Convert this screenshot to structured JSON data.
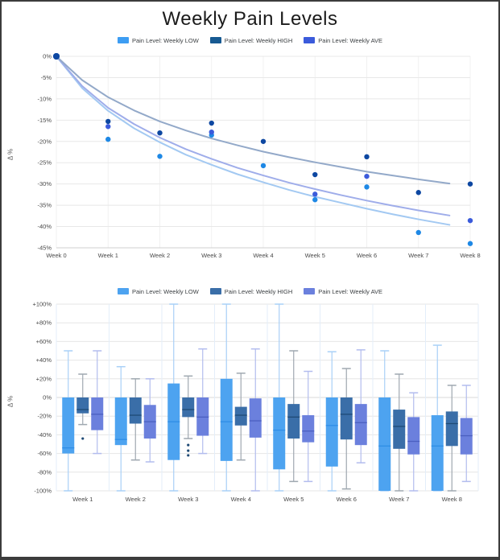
{
  "page": {
    "title": "Weekly Pain Levels",
    "border_color": "#3c3c3c"
  },
  "chart_data": [
    {
      "type": "scatter",
      "name": "weekly-pain-trend",
      "ylabel": "Δ %",
      "x_categories": [
        "Week 0",
        "Week 1",
        "Week 2",
        "Week 3",
        "Week 4",
        "Week 5",
        "Week 6",
        "Week 7",
        "Week 8"
      ],
      "ylim": [
        -45,
        0
      ],
      "yticks": [
        0,
        -5,
        -10,
        -15,
        -20,
        -25,
        -30,
        -35,
        -40,
        -45
      ],
      "grid": true,
      "legend_position": "top",
      "legend": [
        {
          "label": "Pain Level: Weekly LOW",
          "color": "#3d9df3"
        },
        {
          "label": "Pain Level: Weekly HIGH",
          "color": "#175a92"
        },
        {
          "label": "Pain Level: Weekly AVE",
          "color": "#3b5bdb"
        }
      ],
      "series": [
        {
          "name": "Pain Level: Weekly LOW",
          "point_color": "#1e88e5",
          "trend_color": "#a3c9f2",
          "points": [
            [
              0,
              0
            ],
            [
              1,
              -19.5
            ],
            [
              2,
              -23.5
            ],
            [
              3,
              -18.5
            ],
            [
              4,
              -25.7
            ],
            [
              5,
              -33.7
            ],
            [
              6,
              -30.7
            ],
            [
              7,
              -41.4
            ],
            [
              8,
              -44
            ]
          ],
          "trend": [
            [
              0,
              0
            ],
            [
              0.5,
              -7.5
            ],
            [
              1,
              -12.8
            ],
            [
              1.5,
              -16.9
            ],
            [
              2,
              -20.2
            ],
            [
              2.5,
              -23.1
            ],
            [
              3,
              -25.5
            ],
            [
              3.5,
              -27.7
            ],
            [
              4,
              -29.6
            ],
            [
              4.5,
              -31.4
            ],
            [
              5,
              -33
            ],
            [
              5.5,
              -34.4
            ],
            [
              6,
              -35.8
            ],
            [
              6.5,
              -37.1
            ],
            [
              7,
              -38.3
            ],
            [
              7.6,
              -39.6
            ]
          ]
        },
        {
          "name": "Pain Level: Weekly AVE",
          "point_color": "#3b5bdb",
          "trend_color": "#9fadea",
          "points": [
            [
              0,
              0
            ],
            [
              1,
              -16.5
            ],
            [
              3,
              -17.8
            ],
            [
              5,
              -32.4
            ],
            [
              6,
              -28.2
            ],
            [
              8,
              -38.6
            ]
          ],
          "trend": [
            [
              0,
              0
            ],
            [
              0.5,
              -7
            ],
            [
              1,
              -12.1
            ],
            [
              1.5,
              -15.9
            ],
            [
              2,
              -19.1
            ],
            [
              2.5,
              -21.8
            ],
            [
              3,
              -24.1
            ],
            [
              3.5,
              -26.2
            ],
            [
              4,
              -28
            ],
            [
              4.5,
              -29.7
            ],
            [
              5,
              -31.2
            ],
            [
              5.5,
              -32.6
            ],
            [
              6,
              -33.9
            ],
            [
              6.5,
              -35.1
            ],
            [
              7,
              -36.2
            ],
            [
              7.6,
              -37.4
            ]
          ]
        },
        {
          "name": "Pain Level: Weekly HIGH",
          "point_color": "#0d47a1",
          "trend_color": "#93a9c9",
          "points": [
            [
              0,
              0
            ],
            [
              1,
              -15.3
            ],
            [
              2,
              -18
            ],
            [
              3,
              -15.7
            ],
            [
              4,
              -20
            ],
            [
              5,
              -27.8
            ],
            [
              6,
              -23.6
            ],
            [
              7,
              -32
            ],
            [
              8,
              -30
            ]
          ],
          "trend": [
            [
              0,
              0
            ],
            [
              0.5,
              -5.6
            ],
            [
              1,
              -9.6
            ],
            [
              1.5,
              -12.7
            ],
            [
              2,
              -15.3
            ],
            [
              2.5,
              -17.4
            ],
            [
              3,
              -19.3
            ],
            [
              3.5,
              -20.9
            ],
            [
              4,
              -22.4
            ],
            [
              4.5,
              -23.7
            ],
            [
              5,
              -24.9
            ],
            [
              5.5,
              -26
            ],
            [
              6,
              -27.1
            ],
            [
              6.5,
              -28
            ],
            [
              7,
              -28.9
            ],
            [
              7.6,
              -29.9
            ]
          ]
        }
      ]
    },
    {
      "type": "boxplot",
      "name": "weekly-pain-distribution",
      "ylabel": "Δ %",
      "x_categories": [
        "Week 1",
        "Week 2",
        "Week 3",
        "Week 4",
        "Week 5",
        "Week 6",
        "Week 7",
        "Week 8"
      ],
      "ylim": [
        -100,
        100
      ],
      "yticks": [
        100,
        80,
        60,
        40,
        20,
        0,
        -20,
        -40,
        -60,
        -80,
        -100
      ],
      "grid": true,
      "legend_position": "top",
      "legend": [
        {
          "label": "Pain Level: Weekly LOW",
          "color": "#4da3f0"
        },
        {
          "label": "Pain Level: Weekly HIGH",
          "color": "#3a6ea8"
        },
        {
          "label": "Pain Level: Weekly AVE",
          "color": "#6b80dd"
        }
      ],
      "series": [
        {
          "name": "Pain Level: Weekly LOW",
          "box_color": "#4da3f0",
          "whisker_color": "#a9d0f7",
          "median_color": "#2e8de6",
          "boxes": [
            {
              "whisker_high": 50,
              "q3": 0,
              "median": -54,
              "q1": -60,
              "whisker_low": -100,
              "outliers": []
            },
            {
              "whisker_high": 33,
              "q3": 0,
              "median": -45,
              "q1": -51,
              "whisker_low": -100,
              "outliers": []
            },
            {
              "whisker_high": 100,
              "q3": 15,
              "median": -26,
              "q1": -67,
              "whisker_low": -100,
              "outliers": []
            },
            {
              "whisker_high": 100,
              "q3": 20,
              "median": -26,
              "q1": -68,
              "whisker_low": -100,
              "outliers": []
            },
            {
              "whisker_high": 100,
              "q3": 0,
              "median": -35,
              "q1": -77,
              "whisker_low": -100,
              "outliers": []
            },
            {
              "whisker_high": 49,
              "q3": 0,
              "median": -30,
              "q1": -74,
              "whisker_low": -100,
              "outliers": []
            },
            {
              "whisker_high": 50,
              "q3": 0,
              "median": -52,
              "q1": -100,
              "whisker_low": -100,
              "outliers": []
            },
            {
              "whisker_high": 56,
              "q3": -19,
              "median": -52,
              "q1": -100,
              "whisker_low": -100,
              "outliers": []
            }
          ]
        },
        {
          "name": "Pain Level: Weekly HIGH",
          "box_color": "#3a6ea8",
          "whisker_color": "#9fa8b0",
          "median_color": "#1f4a75",
          "boxes": [
            {
              "whisker_high": 25,
              "q3": 0,
              "median": -13,
              "q1": -17,
              "whisker_low": -29,
              "outliers": [
                -44
              ]
            },
            {
              "whisker_high": 20,
              "q3": 0,
              "median": -19,
              "q1": -28,
              "whisker_low": -67,
              "outliers": []
            },
            {
              "whisker_high": 23,
              "q3": 0,
              "median": -13,
              "q1": -21,
              "whisker_low": -44,
              "outliers": [
                -51,
                -57,
                -62
              ]
            },
            {
              "whisker_high": 26,
              "q3": -10,
              "median": -19,
              "q1": -30,
              "whisker_low": -67,
              "outliers": []
            },
            {
              "whisker_high": 50,
              "q3": -7,
              "median": -21,
              "q1": -44,
              "whisker_low": -90,
              "outliers": []
            },
            {
              "whisker_high": 31,
              "q3": 0,
              "median": -18,
              "q1": -45,
              "whisker_low": -98,
              "outliers": []
            },
            {
              "whisker_high": 25,
              "q3": -13,
              "median": -31,
              "q1": -55,
              "whisker_low": -100,
              "outliers": []
            },
            {
              "whisker_high": 13,
              "q3": -15,
              "median": -28,
              "q1": -52,
              "whisker_low": -100,
              "outliers": []
            }
          ]
        },
        {
          "name": "Pain Level: Weekly AVE",
          "box_color": "#6b80dd",
          "whisker_color": "#b2bcee",
          "median_color": "#4a5fc0",
          "boxes": [
            {
              "whisker_high": 50,
              "q3": 0,
              "median": -18,
              "q1": -35,
              "whisker_low": -60,
              "outliers": []
            },
            {
              "whisker_high": 20,
              "q3": -8,
              "median": -26,
              "q1": -44,
              "whisker_low": -69,
              "outliers": []
            },
            {
              "whisker_high": 52,
              "q3": 0,
              "median": -21,
              "q1": -41,
              "whisker_low": -60,
              "outliers": []
            },
            {
              "whisker_high": 52,
              "q3": -1,
              "median": -25,
              "q1": -43,
              "whisker_low": -100,
              "outliers": []
            },
            {
              "whisker_high": 28,
              "q3": -19,
              "median": -36,
              "q1": -48,
              "whisker_low": -90,
              "outliers": []
            },
            {
              "whisker_high": 51,
              "q3": -7,
              "median": -27,
              "q1": -51,
              "whisker_low": -70,
              "outliers": []
            },
            {
              "whisker_high": 5,
              "q3": -21,
              "median": -47,
              "q1": -61,
              "whisker_low": -100,
              "outliers": []
            },
            {
              "whisker_high": 13,
              "q3": -22,
              "median": -41,
              "q1": -61,
              "whisker_low": -90,
              "outliers": []
            }
          ]
        }
      ]
    }
  ]
}
